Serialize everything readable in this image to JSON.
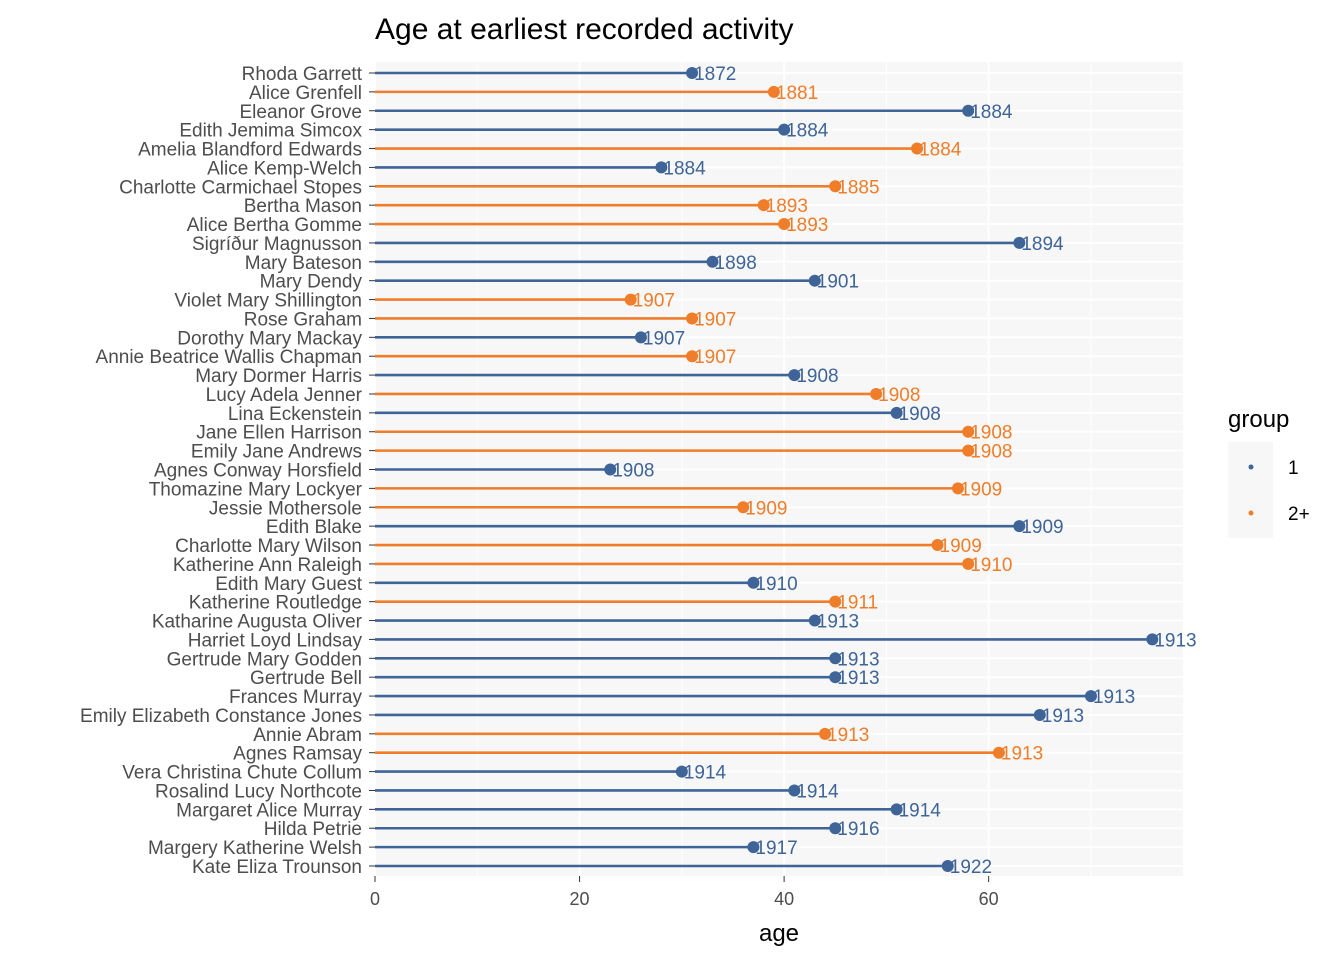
{
  "chart_data": {
    "type": "lollipop",
    "title": "Age at earliest recorded activity",
    "xlabel": "age",
    "ylabel": "",
    "xlim": [
      0,
      79
    ],
    "xticks": [
      0,
      20,
      40,
      60
    ],
    "grid": true,
    "legend": {
      "title": "group",
      "position": "right",
      "entries": [
        {
          "label": "1",
          "color": "#3E6498"
        },
        {
          "label": "2+",
          "color": "#EF7D2A"
        }
      ]
    },
    "series_colors": {
      "1": "#3E6498",
      "2+": "#EF7D2A"
    },
    "points": [
      {
        "name": "Rhoda Garrett",
        "age": 31,
        "year": "1872",
        "group": "1"
      },
      {
        "name": "Alice Grenfell",
        "age": 39,
        "year": "1881",
        "group": "2+"
      },
      {
        "name": "Eleanor Grove",
        "age": 58,
        "year": "1884",
        "group": "1"
      },
      {
        "name": "Edith Jemima Simcox",
        "age": 40,
        "year": "1884",
        "group": "1"
      },
      {
        "name": "Amelia Blandford Edwards",
        "age": 53,
        "year": "1884",
        "group": "2+"
      },
      {
        "name": "Alice Kemp-Welch",
        "age": 28,
        "year": "1884",
        "group": "1"
      },
      {
        "name": "Charlotte Carmichael Stopes",
        "age": 45,
        "year": "1885",
        "group": "2+"
      },
      {
        "name": "Bertha Mason",
        "age": 38,
        "year": "1893",
        "group": "2+"
      },
      {
        "name": "Alice Bertha Gomme",
        "age": 40,
        "year": "1893",
        "group": "2+"
      },
      {
        "name": "Sigríður Magnusson",
        "age": 63,
        "year": "1894",
        "group": "1"
      },
      {
        "name": "Mary Bateson",
        "age": 33,
        "year": "1898",
        "group": "1"
      },
      {
        "name": "Mary Dendy",
        "age": 43,
        "year": "1901",
        "group": "1"
      },
      {
        "name": "Violet Mary Shillington",
        "age": 25,
        "year": "1907",
        "group": "2+"
      },
      {
        "name": "Rose Graham",
        "age": 31,
        "year": "1907",
        "group": "2+"
      },
      {
        "name": "Dorothy Mary Mackay",
        "age": 26,
        "year": "1907",
        "group": "1"
      },
      {
        "name": "Annie Beatrice Wallis Chapman",
        "age": 31,
        "year": "1907",
        "group": "2+"
      },
      {
        "name": "Mary Dormer Harris",
        "age": 41,
        "year": "1908",
        "group": "1"
      },
      {
        "name": "Lucy Adela Jenner",
        "age": 49,
        "year": "1908",
        "group": "2+"
      },
      {
        "name": "Lina Eckenstein",
        "age": 51,
        "year": "1908",
        "group": "1"
      },
      {
        "name": "Jane Ellen Harrison",
        "age": 58,
        "year": "1908",
        "group": "2+"
      },
      {
        "name": "Emily Jane Andrews",
        "age": 58,
        "year": "1908",
        "group": "2+"
      },
      {
        "name": "Agnes Conway Horsfield",
        "age": 23,
        "year": "1908",
        "group": "1"
      },
      {
        "name": "Thomazine Mary Lockyer",
        "age": 57,
        "year": "1909",
        "group": "2+"
      },
      {
        "name": "Jessie Mothersole",
        "age": 36,
        "year": "1909",
        "group": "2+"
      },
      {
        "name": "Edith Blake",
        "age": 63,
        "year": "1909",
        "group": "1"
      },
      {
        "name": "Charlotte Mary Wilson",
        "age": 55,
        "year": "1909",
        "group": "2+"
      },
      {
        "name": "Katherine Ann Raleigh",
        "age": 58,
        "year": "1910",
        "group": "2+"
      },
      {
        "name": "Edith Mary Guest",
        "age": 37,
        "year": "1910",
        "group": "1"
      },
      {
        "name": "Katherine Routledge",
        "age": 45,
        "year": "1911",
        "group": "2+"
      },
      {
        "name": "Katharine Augusta Oliver",
        "age": 43,
        "year": "1913",
        "group": "1"
      },
      {
        "name": "Harriet Loyd Lindsay",
        "age": 76,
        "year": "1913",
        "group": "1"
      },
      {
        "name": "Gertrude Mary Godden",
        "age": 45,
        "year": "1913",
        "group": "1"
      },
      {
        "name": "Gertrude Bell",
        "age": 45,
        "year": "1913",
        "group": "1"
      },
      {
        "name": "Frances Murray",
        "age": 70,
        "year": "1913",
        "group": "1"
      },
      {
        "name": "Emily Elizabeth Constance Jones",
        "age": 65,
        "year": "1913",
        "group": "1"
      },
      {
        "name": "Annie Abram",
        "age": 44,
        "year": "1913",
        "group": "2+"
      },
      {
        "name": "Agnes Ramsay",
        "age": 61,
        "year": "1913",
        "group": "2+"
      },
      {
        "name": "Vera Christina Chute Collum",
        "age": 30,
        "year": "1914",
        "group": "1"
      },
      {
        "name": "Rosalind Lucy Northcote",
        "age": 41,
        "year": "1914",
        "group": "1"
      },
      {
        "name": "Margaret Alice Murray",
        "age": 51,
        "year": "1914",
        "group": "1"
      },
      {
        "name": "Hilda Petrie",
        "age": 45,
        "year": "1916",
        "group": "1"
      },
      {
        "name": "Margery Katherine Welsh",
        "age": 37,
        "year": "1917",
        "group": "1"
      },
      {
        "name": "Kate Eliza Trounson",
        "age": 56,
        "year": "1922",
        "group": "1"
      }
    ]
  }
}
